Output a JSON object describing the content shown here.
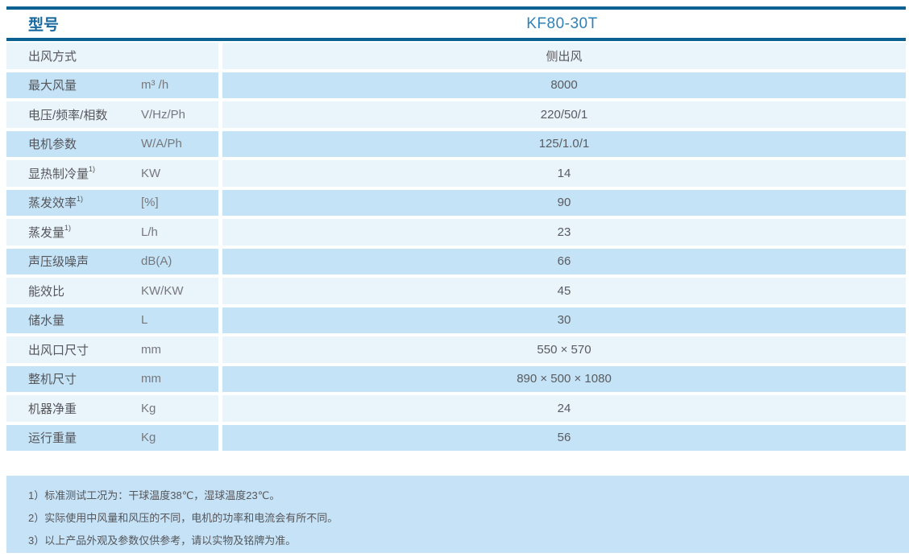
{
  "header": {
    "model_label": "型号",
    "model_value": "KF80-30T"
  },
  "rows": [
    {
      "label": "出风方式",
      "sup": "",
      "unit": "",
      "value": "侧出风"
    },
    {
      "label": "最大风量",
      "sup": "",
      "unit": "m³ /h",
      "value": "8000"
    },
    {
      "label": "电压/频率/相数",
      "sup": "",
      "unit": "V/Hz/Ph",
      "value": "220/50/1"
    },
    {
      "label": "电机参数",
      "sup": "",
      "unit": "W/A/Ph",
      "value": "125/1.0/1"
    },
    {
      "label": "显热制冷量",
      "sup": "1)",
      "unit": "KW",
      "value": "14"
    },
    {
      "label": "蒸发效率",
      "sup": "1)",
      "unit": "[%]",
      "value": "90"
    },
    {
      "label": "蒸发量",
      "sup": "1)",
      "unit": "L/h",
      "value": "23"
    },
    {
      "label": "声压级噪声",
      "sup": "",
      "unit": "dB(A)",
      "value": "66"
    },
    {
      "label": "能效比",
      "sup": "",
      "unit": "KW/KW",
      "value": "45"
    },
    {
      "label": "储水量",
      "sup": "",
      "unit": "L",
      "value": "30"
    },
    {
      "label": "出风口尺寸",
      "sup": "",
      "unit": "mm",
      "value": "550 × 570"
    },
    {
      "label": "整机尺寸",
      "sup": "",
      "unit": "mm",
      "value": "890 × 500 × 1080"
    },
    {
      "label": "机器净重",
      "sup": "",
      "unit": "Kg",
      "value": "24"
    },
    {
      "label": "运行重量",
      "sup": "",
      "unit": "Kg",
      "value": "56"
    }
  ],
  "notes": [
    "1）标准测试工况为：干球温度38℃，湿球温度23℃。",
    "2）实际使用中风量和风压的不同，电机的功率和电流会有所不同。",
    "3）以上产品外观及参数仅供参考，请以实物及铭牌为准。"
  ],
  "colors": {
    "line": "#0b6191",
    "header_label_text": "#17689e",
    "header_value_text": "#2f81b7",
    "row_light": "#eaf4fb",
    "row_dark": "#c5e3f7",
    "note_bg": "#c6e2f6",
    "label_text": "#55565a",
    "unit_text": "#77787b",
    "value_text": "#5a5b5e",
    "note_text": "#55565a"
  }
}
